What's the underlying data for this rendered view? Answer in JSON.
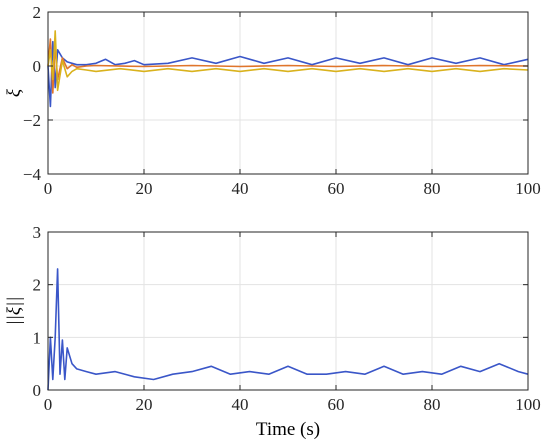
{
  "chart_data": [
    {
      "type": "line",
      "title": "",
      "xlabel": "",
      "ylabel": "ξ",
      "xlim": [
        0,
        100
      ],
      "ylim": [
        -4,
        2
      ],
      "xticks": [
        "0",
        "20",
        "40",
        "60",
        "80",
        "100"
      ],
      "yticks": [
        "2",
        "0",
        "−2",
        "−4"
      ],
      "grid": true,
      "legend": "none",
      "series": [
        {
          "color": "#3a56c8",
          "x": [
            0,
            0.5,
            1,
            1.5,
            2,
            3,
            4,
            5,
            6,
            8,
            10,
            12,
            14,
            16,
            18,
            20,
            25,
            30,
            35,
            40,
            45,
            50,
            55,
            60,
            65,
            70,
            75,
            80,
            85,
            90,
            95,
            100
          ],
          "y": [
            0,
            -1.5,
            0.9,
            -0.8,
            0.6,
            0.3,
            0.15,
            0.1,
            0.05,
            0.05,
            0.1,
            0.25,
            0.05,
            0.1,
            0.2,
            0.05,
            0.1,
            0.3,
            0.1,
            0.35,
            0.1,
            0.3,
            0.05,
            0.3,
            0.1,
            0.3,
            0.05,
            0.3,
            0.1,
            0.3,
            0.05,
            0.25
          ]
        },
        {
          "color": "#e0752b",
          "x": [
            0,
            0.5,
            1,
            1.5,
            2,
            3,
            4,
            5,
            6,
            8,
            10,
            20,
            30,
            40,
            50,
            60,
            70,
            80,
            90,
            100
          ],
          "y": [
            0,
            1.0,
            -1.0,
            0.8,
            -0.5,
            0.3,
            -0.1,
            0.05,
            -0.05,
            0.0,
            0.02,
            -0.02,
            0.02,
            -0.02,
            0.02,
            -0.02,
            0.02,
            -0.02,
            0.02,
            0.0
          ]
        },
        {
          "color": "#d9b21d",
          "x": [
            0,
            0.5,
            1,
            1.5,
            2,
            3,
            4,
            5,
            6,
            8,
            10,
            15,
            20,
            25,
            30,
            35,
            40,
            45,
            50,
            55,
            60,
            65,
            70,
            75,
            80,
            85,
            90,
            95,
            100
          ],
          "y": [
            0,
            0.6,
            -0.5,
            1.3,
            -0.9,
            0.2,
            -0.4,
            -0.2,
            -0.1,
            -0.15,
            -0.2,
            -0.1,
            -0.2,
            -0.1,
            -0.2,
            -0.1,
            -0.2,
            -0.1,
            -0.2,
            -0.1,
            -0.2,
            -0.1,
            -0.2,
            -0.1,
            -0.2,
            -0.1,
            -0.2,
            -0.1,
            -0.15
          ]
        }
      ]
    },
    {
      "type": "line",
      "title": "",
      "xlabel": "Time (s)",
      "ylabel": "||ξ||",
      "xlim": [
        0,
        100
      ],
      "ylim": [
        0,
        3
      ],
      "xticks": [
        "0",
        "20",
        "40",
        "60",
        "80",
        "100"
      ],
      "yticks": [
        "3",
        "2",
        "1",
        "0"
      ],
      "grid": true,
      "legend": "none",
      "series": [
        {
          "color": "#3a56c8",
          "x": [
            0,
            0.5,
            1,
            1.5,
            2,
            2.5,
            3,
            3.5,
            4,
            5,
            6,
            8,
            10,
            14,
            18,
            22,
            26,
            30,
            34,
            38,
            42,
            46,
            50,
            54,
            58,
            62,
            66,
            70,
            74,
            78,
            82,
            86,
            90,
            94,
            98,
            100
          ],
          "y": [
            0,
            1.0,
            0.2,
            1.0,
            2.3,
            0.3,
            0.95,
            0.2,
            0.8,
            0.5,
            0.4,
            0.35,
            0.3,
            0.35,
            0.25,
            0.2,
            0.3,
            0.35,
            0.45,
            0.3,
            0.35,
            0.3,
            0.45,
            0.3,
            0.3,
            0.35,
            0.3,
            0.45,
            0.3,
            0.35,
            0.3,
            0.45,
            0.35,
            0.5,
            0.35,
            0.3
          ]
        }
      ]
    }
  ]
}
